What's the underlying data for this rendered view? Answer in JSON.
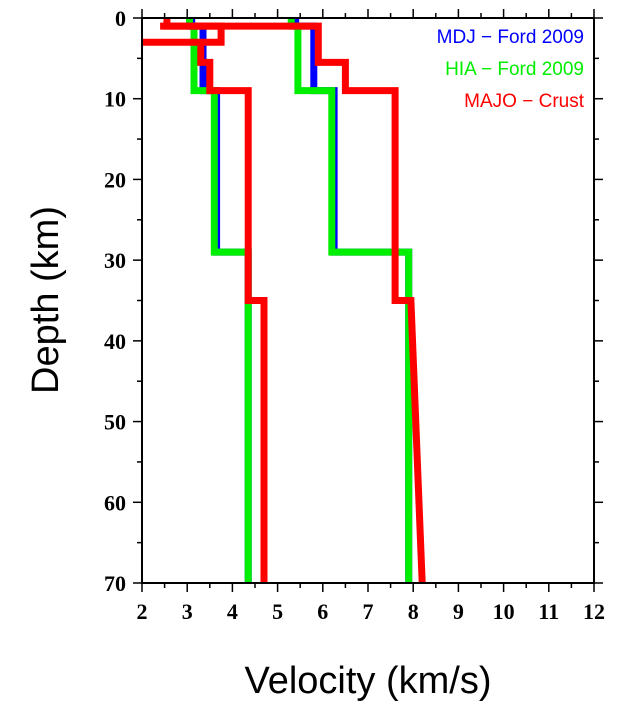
{
  "chart_data": {
    "type": "line",
    "xlabel": "Velocity (km/s)",
    "ylabel": "Depth (km)",
    "xlim": [
      2,
      12
    ],
    "ylim": [
      0,
      70
    ],
    "y_inverted": true,
    "x_ticks": [
      2,
      3,
      4,
      5,
      6,
      7,
      8,
      9,
      10,
      11,
      12
    ],
    "y_ticks": [
      0,
      10,
      20,
      30,
      40,
      50,
      60,
      70
    ],
    "grid": false,
    "legend_position": "top-right",
    "series": [
      {
        "name": "MDJ − Ford 2009",
        "color": "#0000ff",
        "profiles": [
          {
            "wave": "Vs",
            "x": [
              3.1,
              3.1,
              3.35,
              3.35,
              3.65,
              3.65,
              4.35,
              4.35
            ],
            "y": [
              0,
              1,
              1,
              9,
              9,
              29,
              29,
              70
            ]
          },
          {
            "wave": "Vp",
            "x": [
              5.4,
              5.4,
              5.8,
              5.8,
              6.25,
              6.25,
              7.9,
              7.9
            ],
            "y": [
              0,
              1,
              1,
              9,
              9,
              29,
              29,
              70
            ]
          }
        ]
      },
      {
        "name": "HIA − Ford 2009",
        "color": "#00ee00",
        "profiles": [
          {
            "wave": "Vs",
            "x": [
              3.05,
              3.05,
              3.15,
              3.15,
              3.6,
              3.6,
              4.35,
              4.35
            ],
            "y": [
              0,
              1,
              1,
              9,
              9,
              29,
              29,
              70
            ]
          },
          {
            "wave": "Vp",
            "x": [
              5.3,
              5.3,
              5.45,
              5.45,
              6.2,
              6.2,
              7.9,
              7.9
            ],
            "y": [
              0,
              1,
              1,
              9,
              9,
              29,
              29,
              70
            ]
          }
        ]
      },
      {
        "name": "MAJO − Crust",
        "color": "#ff0000",
        "profiles": [
          {
            "wave": "Vs",
            "x": [
              2.55,
              2.55,
              3.75,
              3.75,
              2.0,
              2.0,
              3.3,
              3.3,
              3.5,
              3.5,
              4.35,
              4.35,
              4.7,
              4.7
            ],
            "y": [
              0,
              1,
              1,
              3,
              3,
              3,
              3,
              5.5,
              5.5,
              9,
              9,
              35,
              35,
              70
            ]
          },
          {
            "wave": "Vp",
            "x": [
              2.4,
              2.4,
              5.9,
              5.9,
              6.5,
              6.5,
              7.6,
              7.6,
              7.95,
              8.2
            ],
            "y": [
              1,
              1,
              1,
              5.5,
              5.5,
              9,
              9,
              35,
              35,
              70
            ]
          }
        ]
      }
    ]
  }
}
